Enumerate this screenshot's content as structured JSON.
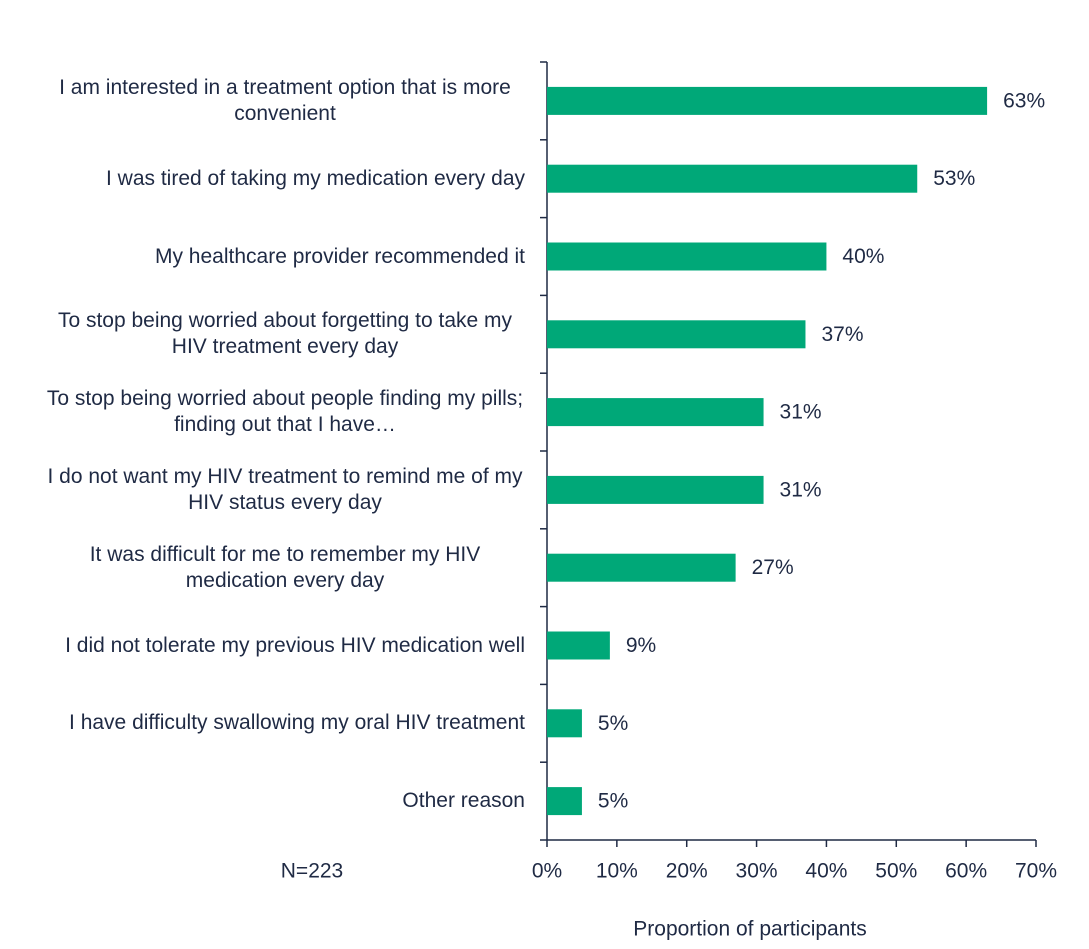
{
  "chart_data": {
    "type": "barh",
    "categories": [
      "I am interested in a treatment option that is more convenient",
      "I was tired of taking my medication every day",
      "My healthcare provider recommended it",
      "To stop being worried about forgetting to take my HIV treatment every day",
      "To stop being worried about people finding my pills; finding out that I have…",
      "I do not want my HIV treatment to remind me of my HIV status every day",
      "It was difficult for me to remember my HIV medication every day",
      "I did not tolerate my previous HIV medication well",
      "I have difficulty swallowing my oral HIV treatment",
      "Other reason"
    ],
    "values": [
      63,
      53,
      40,
      37,
      31,
      31,
      27,
      9,
      5,
      5
    ],
    "value_labels": [
      "63%",
      "53%",
      "40%",
      "37%",
      "31%",
      "31%",
      "27%",
      "9%",
      "5%",
      "5%"
    ],
    "color": "#00a878",
    "xlim": [
      0,
      70
    ],
    "xticks": [
      {
        "value": 0,
        "label": "0%"
      },
      {
        "value": 10,
        "label": "10%"
      },
      {
        "value": 20,
        "label": "20%"
      },
      {
        "value": 30,
        "label": "30%"
      },
      {
        "value": 40,
        "label": "40%"
      },
      {
        "value": 50,
        "label": "50%"
      },
      {
        "value": 60,
        "label": "60%"
      },
      {
        "value": 70,
        "label": "70%"
      }
    ],
    "xlabel": "Proportion of participants",
    "annotation": "N=223"
  }
}
